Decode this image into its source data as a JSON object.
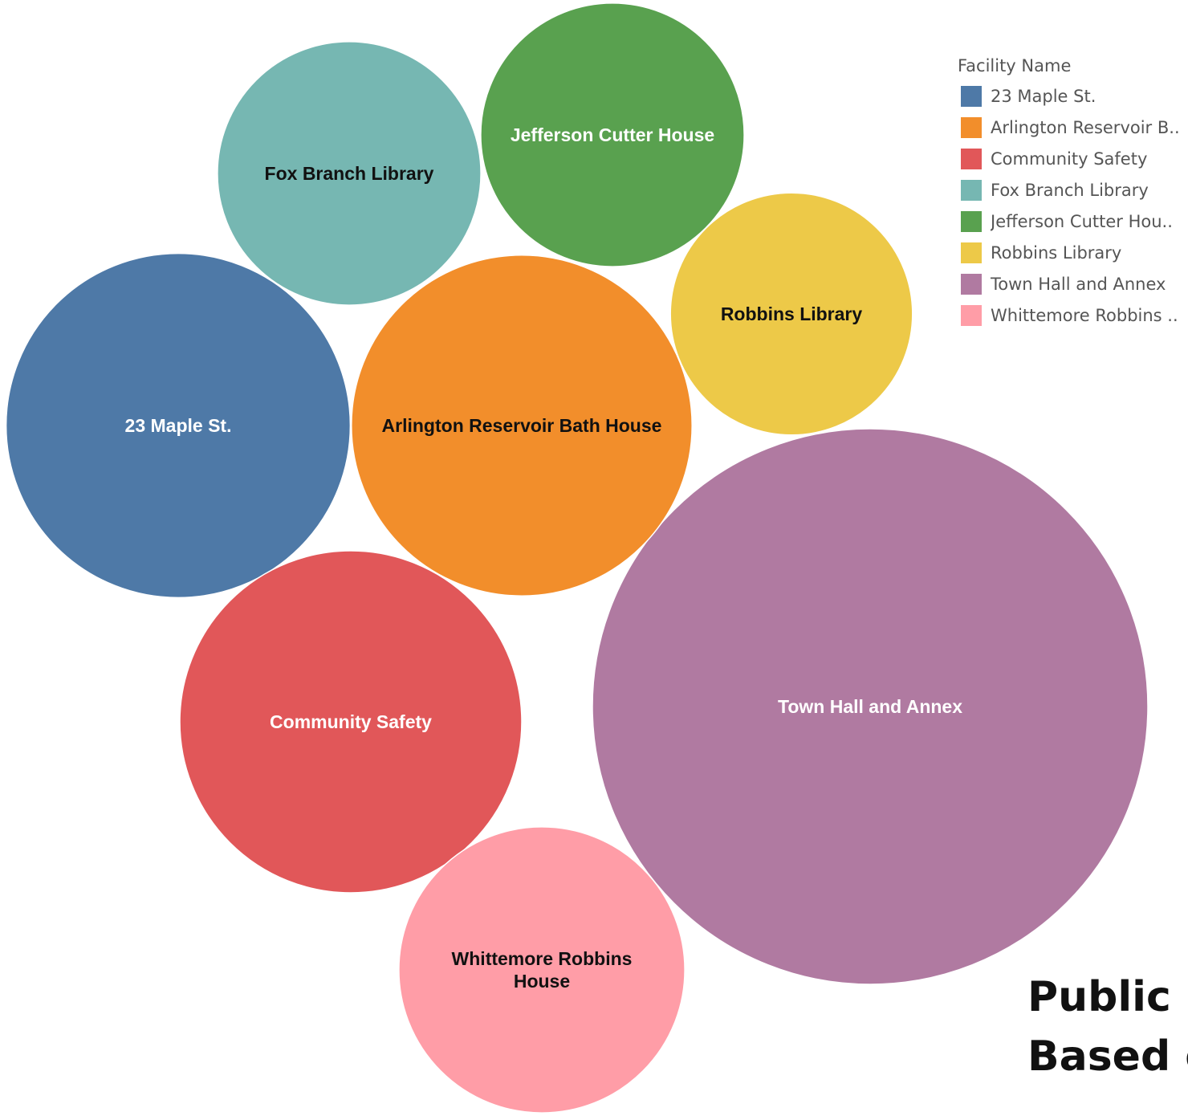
{
  "chart_data": {
    "type": "bubble",
    "legend": {
      "title": "Facility Name",
      "placement": "top-right",
      "entries": [
        {
          "label": "23 Maple St.",
          "color": "#4e79a7"
        },
        {
          "label": "Arlington Reservoir B..",
          "color": "#f28e2b"
        },
        {
          "label": "Community Safety",
          "color": "#e15759"
        },
        {
          "label": "Fox Branch Library",
          "color": "#76b7b2"
        },
        {
          "label": "Jefferson Cutter Hou..",
          "color": "#59a14f"
        },
        {
          "label": "Robbins Library",
          "color": "#edc948"
        },
        {
          "label": "Town Hall and Annex",
          "color": "#b07aa1"
        },
        {
          "label": "Whittemore Robbins ..",
          "color": "#ff9da7"
        }
      ]
    },
    "bubbles": [
      {
        "name": "Town Hall and Annex",
        "label_lines": [
          "Town Hall and Annex"
        ],
        "relative_size": 1.0,
        "color": "#b07aa1",
        "label_color": "#ffffff"
      },
      {
        "name": "Arlington Reservoir Bath House",
        "label_lines": [
          "Arlington Reservoir Bath House"
        ],
        "relative_size": 0.376,
        "color": "#f28e2b",
        "label_color": "#111111"
      },
      {
        "name": "23 Maple St.",
        "label_lines": [
          "23 Maple St."
        ],
        "relative_size": 0.384,
        "color": "#4e79a7",
        "label_color": "#ffffff"
      },
      {
        "name": "Community Safety",
        "label_lines": [
          "Community Safety"
        ],
        "relative_size": 0.379,
        "color": "#e15759",
        "label_color": "#ffffff"
      },
      {
        "name": "Jefferson Cutter House",
        "label_lines": [
          "Jefferson Cutter House"
        ],
        "relative_size": 0.225,
        "color": "#59a14f",
        "label_color": "#ffffff"
      },
      {
        "name": "Fox Branch Library",
        "label_lines": [
          "Fox Branch Library"
        ],
        "relative_size": 0.225,
        "color": "#76b7b2",
        "label_color": "#111111"
      },
      {
        "name": "Robbins Library",
        "label_lines": [
          "Robbins Library"
        ],
        "relative_size": 0.19,
        "color": "#edc948",
        "label_color": "#111111"
      },
      {
        "name": "Whittemore Robbins House",
        "label_lines": [
          "Whittemore Robbins",
          "House"
        ],
        "relative_size": 0.265,
        "color": "#ff9da7",
        "label_color": "#111111"
      }
    ]
  },
  "caption": {
    "line1": "Public B",
    "line2": "Based o"
  }
}
